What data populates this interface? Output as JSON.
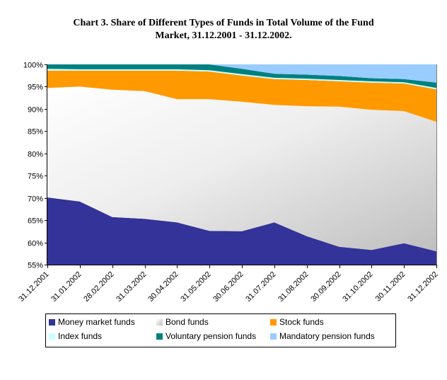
{
  "chart_data": {
    "type": "area",
    "stacked": "percent",
    "title": "Chart 3. Share of Different Types of Funds in Total Volume of the Fund Market, 31.12.2001 - 31.12.2002.",
    "title_lines": [
      "Chart 3. Share of Different Types of Funds in Total Volume of the Fund",
      "Market, 31.12.2001 - 31.12.2002."
    ],
    "xlabel": "",
    "ylabel": "",
    "ylim": [
      55,
      100
    ],
    "yticks": [
      "55%",
      "60%",
      "65%",
      "70%",
      "75%",
      "80%",
      "85%",
      "90%",
      "95%",
      "100%"
    ],
    "ytick_values": [
      55,
      60,
      65,
      70,
      75,
      80,
      85,
      90,
      95,
      100
    ],
    "categories": [
      "31.12.2001",
      "31.01.2002",
      "28.02.2002",
      "31.03.2002",
      "30.04.2002",
      "31.05.2002",
      "30.06.2002",
      "31.07.2002",
      "31.08.2002",
      "30.09.2002",
      "31.10.2002",
      "30.11.2002",
      "31.12.2002"
    ],
    "legend_position": "bottom",
    "series": [
      {
        "name": "Money market funds",
        "color": "#333399",
        "values": [
          70.1,
          69.2,
          65.7,
          65.3,
          64.5,
          62.6,
          62.5,
          64.5,
          61.4,
          59.0,
          58.3,
          59.8,
          58.0
        ]
      },
      {
        "name": "Bond funds",
        "color": "#e6e6e6",
        "values": [
          24.6,
          25.8,
          28.6,
          28.7,
          27.7,
          29.6,
          29.1,
          26.4,
          29.2,
          31.5,
          31.5,
          29.7,
          29.1
        ]
      },
      {
        "name": "Stock funds",
        "color": "#ff9900",
        "values": [
          3.9,
          3.6,
          4.3,
          4.6,
          6.4,
          6.2,
          5.9,
          5.8,
          5.9,
          5.7,
          6.1,
          6.2,
          7.3
        ]
      },
      {
        "name": "Index funds",
        "color": "#ccffff",
        "values": [
          0.4,
          0.3,
          0.3,
          0.3,
          0.3,
          0.3,
          0.3,
          0.3,
          0.3,
          0.3,
          0.3,
          0.3,
          0.3
        ]
      },
      {
        "name": "Voluntary pension funds",
        "color": "#008080",
        "values": [
          1.0,
          1.1,
          1.1,
          1.1,
          1.1,
          1.3,
          1.2,
          0.9,
          0.9,
          0.9,
          0.7,
          0.7,
          1.2
        ]
      },
      {
        "name": "Mandatory pension funds",
        "color": "#99ccff",
        "values": [
          0.0,
          0.0,
          0.0,
          0.0,
          0.0,
          0.0,
          1.0,
          2.1,
          2.3,
          2.6,
          3.1,
          3.3,
          4.1
        ]
      }
    ],
    "grid": false
  }
}
